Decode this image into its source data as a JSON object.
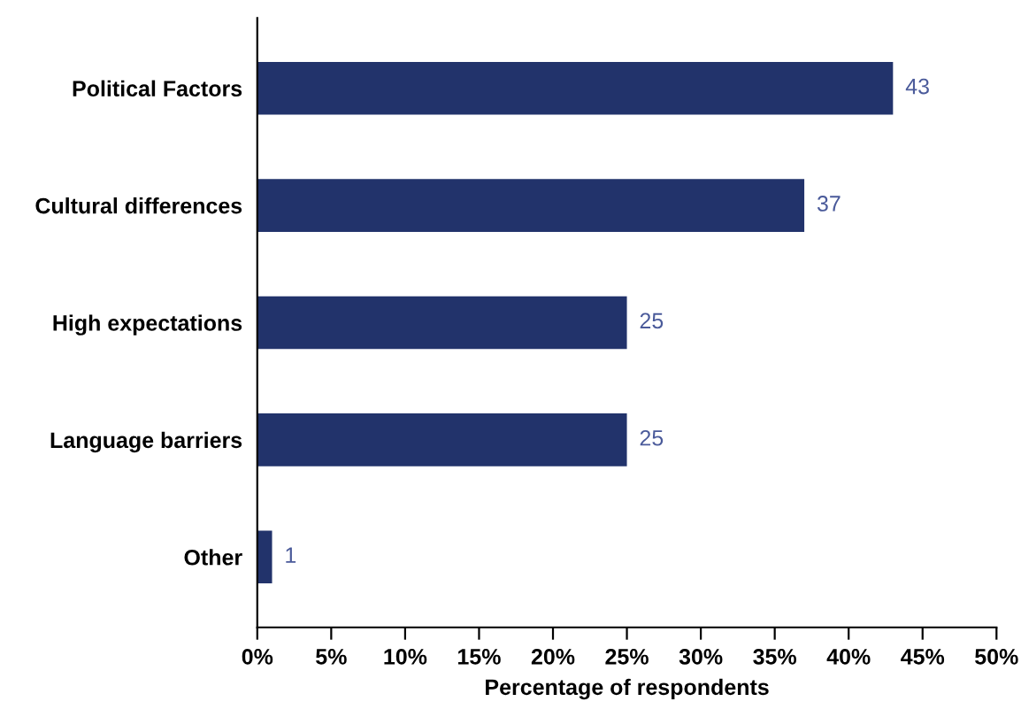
{
  "chart_data": {
    "type": "bar",
    "orientation": "horizontal",
    "xlabel": "Percentage of respondents",
    "categories": [
      "Political Factors",
      "Cultural differences",
      "High expectations",
      "Language barriers",
      "Other"
    ],
    "values": [
      43,
      37,
      25,
      25,
      1
    ],
    "color": "#22336b",
    "data_labels": true,
    "grid": false,
    "legend": false,
    "xlim": [
      0,
      50
    ],
    "xticks": [
      {
        "value": 0,
        "label": "0%"
      },
      {
        "value": 5,
        "label": "5%"
      },
      {
        "value": 10,
        "label": "10%"
      },
      {
        "value": 15,
        "label": "15%"
      },
      {
        "value": 20,
        "label": "20%"
      },
      {
        "value": 25,
        "label": "25%"
      },
      {
        "value": 30,
        "label": "30%"
      },
      {
        "value": 35,
        "label": "35%"
      },
      {
        "value": 40,
        "label": "40%"
      },
      {
        "value": 45,
        "label": "45%"
      },
      {
        "value": 50,
        "label": "50%"
      }
    ]
  }
}
